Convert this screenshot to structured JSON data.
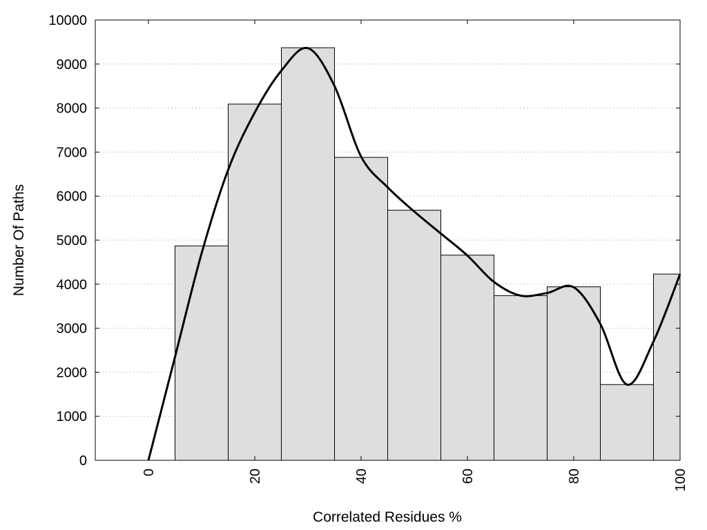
{
  "chart_data": {
    "type": "bar",
    "title": "",
    "xlabel": "Correlated Residues %",
    "ylabel": "Number Of Paths",
    "xlim": [
      -10,
      100
    ],
    "ylim": [
      0,
      10000
    ],
    "grid": "horizontal dotted",
    "y_ticks": [
      0,
      1000,
      2000,
      3000,
      4000,
      5000,
      6000,
      7000,
      8000,
      9000,
      10000
    ],
    "x_ticks": [
      0,
      20,
      40,
      60,
      80,
      100
    ],
    "bin_width": 10,
    "bins": [
      {
        "x": 10,
        "value": 4870
      },
      {
        "x": 20,
        "value": 8090
      },
      {
        "x": 30,
        "value": 9370
      },
      {
        "x": 40,
        "value": 6880
      },
      {
        "x": 50,
        "value": 5680
      },
      {
        "x": 60,
        "value": 4660
      },
      {
        "x": 70,
        "value": 3740
      },
      {
        "x": 80,
        "value": 3940
      },
      {
        "x": 90,
        "value": 1720
      },
      {
        "x": 100,
        "value": 4230
      }
    ],
    "smoothed_curve": {
      "x": [
        0,
        5,
        10,
        15,
        20,
        25,
        30,
        35,
        40,
        45,
        50,
        55,
        60,
        65,
        70,
        75,
        80,
        85,
        90,
        95,
        100
      ],
      "y": [
        0,
        2350,
        4700,
        6600,
        7900,
        8850,
        9360,
        8500,
        6900,
        6200,
        5650,
        5150,
        4650,
        4050,
        3740,
        3800,
        3930,
        3100,
        1720,
        2700,
        4230
      ]
    },
    "colors": {
      "bar_fill": "#dedede",
      "bar_stroke": "#000000",
      "curve": "#000000",
      "grid": "#c8c8c8"
    }
  }
}
